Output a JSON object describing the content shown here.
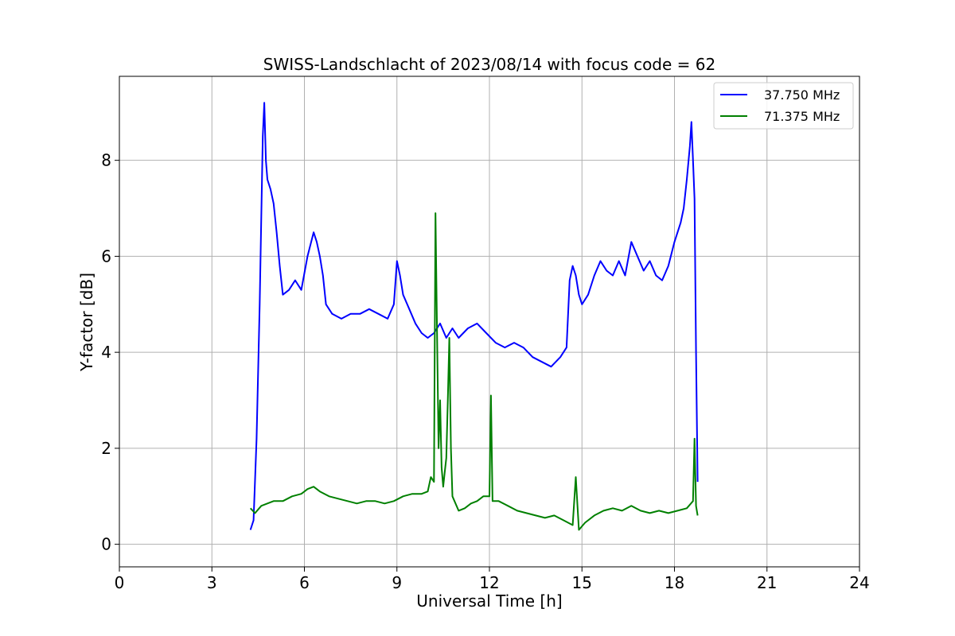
{
  "chart_data": {
    "type": "line",
    "title": "SWISS-Landschlacht of 2023/08/14 with focus code = 62",
    "xlabel": "Universal Time [h]",
    "ylabel": "Y-factor [dB]",
    "xlim": [
      0,
      24
    ],
    "ylim": [
      -0.47,
      9.75
    ],
    "xticks": [
      0,
      3,
      6,
      9,
      12,
      15,
      18,
      21,
      24
    ],
    "xtick_labels": [
      "0",
      "3",
      "6",
      "9",
      "12",
      "15",
      "18",
      "21",
      "24"
    ],
    "yticks": [
      0,
      2,
      4,
      6,
      8
    ],
    "ytick_labels": [
      "0",
      "2",
      "4",
      "6",
      "8"
    ],
    "grid": true,
    "legend_position": "top-right",
    "series": [
      {
        "name": "37.750 MHz",
        "color": "#0000ff",
        "x": [
          4.25,
          4.35,
          4.45,
          4.55,
          4.6,
          4.65,
          4.7,
          4.75,
          4.8,
          4.9,
          5.0,
          5.1,
          5.2,
          5.3,
          5.5,
          5.7,
          5.9,
          6.1,
          6.3,
          6.4,
          6.5,
          6.6,
          6.7,
          6.9,
          7.2,
          7.5,
          7.8,
          8.1,
          8.4,
          8.7,
          8.9,
          9.0,
          9.1,
          9.2,
          9.4,
          9.6,
          9.8,
          10.0,
          10.2,
          10.4,
          10.6,
          10.8,
          11.0,
          11.3,
          11.6,
          11.9,
          12.2,
          12.5,
          12.8,
          13.1,
          13.4,
          13.7,
          14.0,
          14.3,
          14.5,
          14.6,
          14.7,
          14.8,
          14.9,
          15.0,
          15.2,
          15.4,
          15.6,
          15.8,
          16.0,
          16.2,
          16.4,
          16.6,
          16.8,
          17.0,
          17.2,
          17.4,
          17.6,
          17.8,
          18.0,
          18.2,
          18.3,
          18.4,
          18.5,
          18.55,
          18.6,
          18.65,
          18.7,
          18.75
        ],
        "y": [
          0.3,
          0.5,
          2.2,
          5.0,
          6.8,
          8.5,
          9.2,
          8.0,
          7.6,
          7.4,
          7.1,
          6.5,
          5.8,
          5.2,
          5.3,
          5.5,
          5.3,
          6.0,
          6.5,
          6.3,
          6.0,
          5.6,
          5.0,
          4.8,
          4.7,
          4.8,
          4.8,
          4.9,
          4.8,
          4.7,
          5.0,
          5.9,
          5.6,
          5.2,
          4.9,
          4.6,
          4.4,
          4.3,
          4.4,
          4.6,
          4.3,
          4.5,
          4.3,
          4.5,
          4.6,
          4.4,
          4.2,
          4.1,
          4.2,
          4.1,
          3.9,
          3.8,
          3.7,
          3.9,
          4.1,
          5.5,
          5.8,
          5.6,
          5.2,
          5.0,
          5.2,
          5.6,
          5.9,
          5.7,
          5.6,
          5.9,
          5.6,
          6.3,
          6.0,
          5.7,
          5.9,
          5.6,
          5.5,
          5.8,
          6.3,
          6.7,
          7.0,
          7.6,
          8.3,
          8.8,
          8.0,
          7.2,
          4.0,
          1.3
        ]
      },
      {
        "name": "71.375 MHz",
        "color": "#008000",
        "x": [
          4.25,
          4.4,
          4.6,
          4.8,
          5.0,
          5.3,
          5.6,
          5.9,
          6.1,
          6.3,
          6.5,
          6.8,
          7.1,
          7.4,
          7.7,
          8.0,
          8.3,
          8.6,
          8.9,
          9.2,
          9.5,
          9.8,
          10.0,
          10.1,
          10.2,
          10.25,
          10.3,
          10.35,
          10.4,
          10.45,
          10.5,
          10.55,
          10.6,
          10.65,
          10.7,
          10.75,
          10.8,
          11.0,
          11.2,
          11.4,
          11.6,
          11.8,
          12.0,
          12.05,
          12.1,
          12.3,
          12.6,
          12.9,
          13.2,
          13.5,
          13.8,
          14.1,
          14.4,
          14.7,
          14.8,
          14.9,
          15.1,
          15.4,
          15.7,
          16.0,
          16.3,
          16.6,
          16.9,
          17.2,
          17.5,
          17.8,
          18.1,
          18.4,
          18.6,
          18.65,
          18.7,
          18.75
        ],
        "y": [
          0.75,
          0.65,
          0.8,
          0.85,
          0.9,
          0.9,
          1.0,
          1.05,
          1.15,
          1.2,
          1.1,
          1.0,
          0.95,
          0.9,
          0.85,
          0.9,
          0.9,
          0.85,
          0.9,
          1.0,
          1.05,
          1.05,
          1.1,
          1.4,
          1.3,
          6.9,
          4.5,
          2.0,
          3.0,
          1.6,
          1.2,
          1.5,
          1.8,
          3.0,
          4.3,
          2.0,
          1.0,
          0.7,
          0.75,
          0.85,
          0.9,
          1.0,
          1.0,
          3.1,
          0.9,
          0.9,
          0.8,
          0.7,
          0.65,
          0.6,
          0.55,
          0.6,
          0.5,
          0.4,
          1.4,
          0.3,
          0.45,
          0.6,
          0.7,
          0.75,
          0.7,
          0.8,
          0.7,
          0.65,
          0.7,
          0.65,
          0.7,
          0.75,
          0.9,
          2.2,
          0.8,
          0.6
        ]
      }
    ]
  }
}
